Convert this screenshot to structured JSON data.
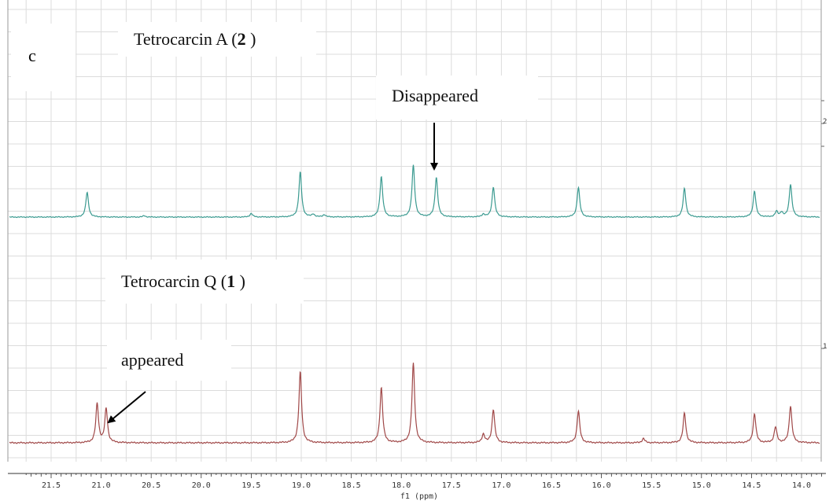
{
  "panel_letter": "c",
  "labels": {
    "top_prefix": "Tetrocarcin A (",
    "top_bold": "2",
    "top_suffix": " )",
    "bottom_prefix": "Tetrocarcin Q (",
    "bottom_bold": "1",
    "bottom_suffix": " )",
    "disappeared": "Disappeared",
    "appeared": "appeared"
  },
  "right_edge_labels": [
    "2",
    "1"
  ],
  "chart_data": {
    "type": "line",
    "xlabel": "f1 (ppm)",
    "xlim": [
      21.8,
      13.8
    ],
    "x_reversed": true,
    "grid": true,
    "ticks": [
      21.5,
      21.0,
      20.5,
      20.0,
      19.5,
      19.0,
      18.5,
      18.0,
      17.5,
      17.0,
      16.5,
      16.0,
      15.5,
      15.0,
      14.5,
      14.0
    ],
    "tick_labels": [
      "21.5",
      "21.0",
      "20.5",
      "20.0",
      "19.5",
      "19.0",
      "18.5",
      "18.0",
      "17.5",
      "17.0",
      "16.5",
      "16.0",
      "15.5",
      "15.0",
      "14.5",
      "14.0"
    ],
    "series": [
      {
        "name": "Tetrocarcin A (2 )",
        "color": "#3a9a90",
        "baseline": 0,
        "peaks": [
          {
            "x": 21.14,
            "h": 0.55
          },
          {
            "x": 20.57,
            "h": 0.03
          },
          {
            "x": 19.5,
            "h": 0.08
          },
          {
            "x": 19.01,
            "h": 1.0
          },
          {
            "x": 18.88,
            "h": 0.06
          },
          {
            "x": 18.77,
            "h": 0.05
          },
          {
            "x": 18.2,
            "h": 0.9
          },
          {
            "x": 17.88,
            "h": 1.15
          },
          {
            "x": 17.65,
            "h": 0.88
          },
          {
            "x": 17.18,
            "h": 0.06
          },
          {
            "x": 17.08,
            "h": 0.67
          },
          {
            "x": 16.23,
            "h": 0.66
          },
          {
            "x": 15.17,
            "h": 0.64
          },
          {
            "x": 14.47,
            "h": 0.58
          },
          {
            "x": 14.25,
            "h": 0.12
          },
          {
            "x": 14.2,
            "h": 0.1
          },
          {
            "x": 14.11,
            "h": 0.73
          }
        ]
      },
      {
        "name": "Tetrocarcin Q (1 )",
        "color": "#a04848",
        "baseline": 0,
        "peaks": [
          {
            "x": 21.04,
            "h": 0.55
          },
          {
            "x": 20.95,
            "h": 0.48
          },
          {
            "x": 19.01,
            "h": 1.0
          },
          {
            "x": 18.2,
            "h": 0.78
          },
          {
            "x": 17.88,
            "h": 1.12
          },
          {
            "x": 17.18,
            "h": 0.12
          },
          {
            "x": 17.08,
            "h": 0.47
          },
          {
            "x": 16.23,
            "h": 0.45
          },
          {
            "x": 15.58,
            "h": 0.06
          },
          {
            "x": 15.17,
            "h": 0.42
          },
          {
            "x": 14.47,
            "h": 0.41
          },
          {
            "x": 14.26,
            "h": 0.22
          },
          {
            "x": 14.11,
            "h": 0.52
          }
        ]
      }
    ],
    "annotations": [
      {
        "text": "Disappeared",
        "x": 17.65,
        "target_series": "Tetrocarcin A (2 )"
      },
      {
        "text": "appeared",
        "x": 20.95,
        "target_series": "Tetrocarcin Q (1 )"
      }
    ]
  }
}
